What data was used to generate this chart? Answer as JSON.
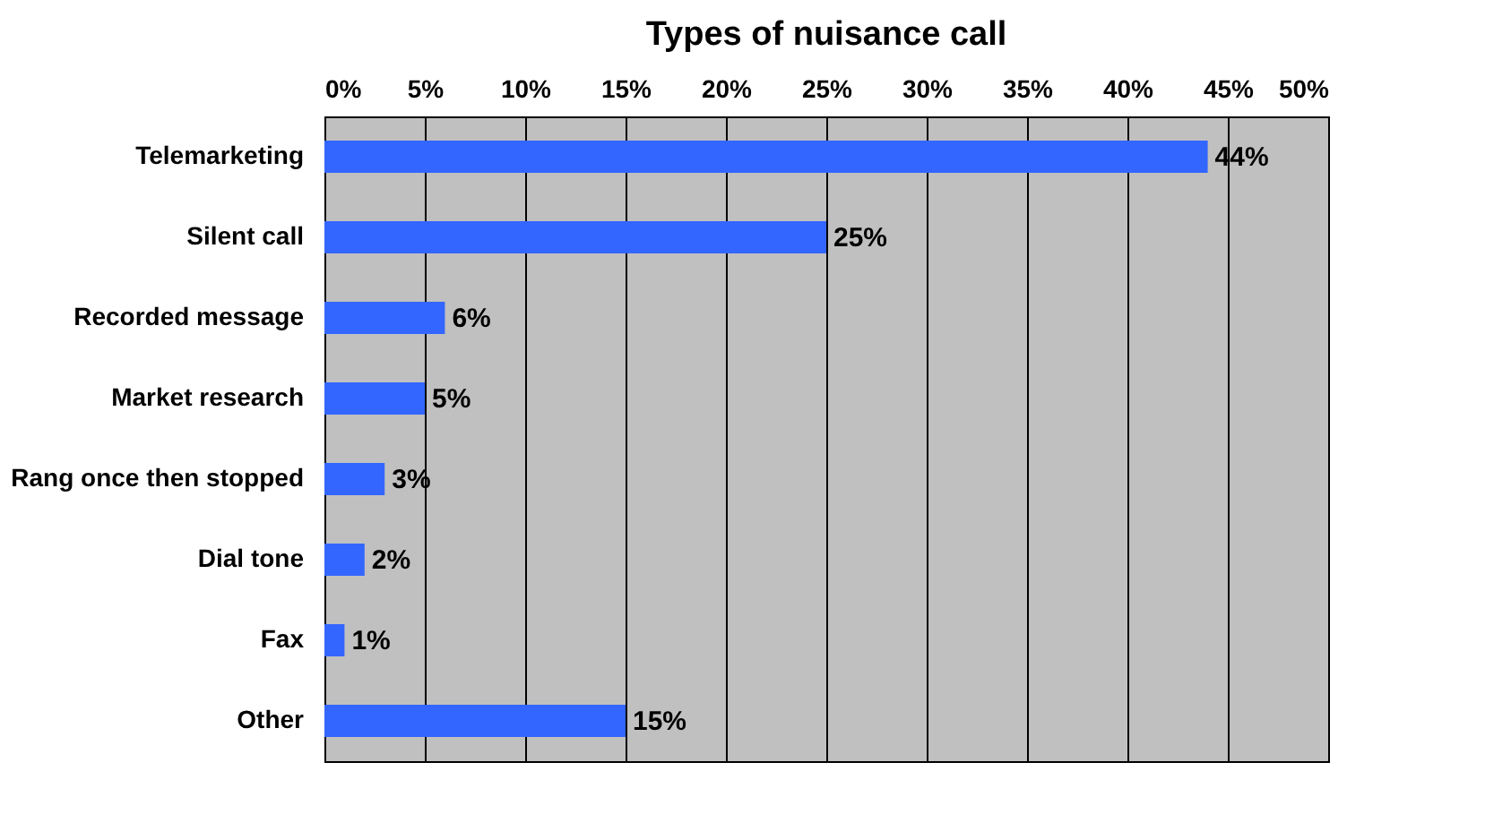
{
  "chart_data": {
    "type": "bar",
    "orientation": "horizontal",
    "title": "Types of nuisance call",
    "categories": [
      "Telemarketing",
      "Silent call",
      "Recorded message",
      "Market research",
      "Rang once then stopped",
      "Dial tone",
      "Fax",
      "Other"
    ],
    "values": [
      44,
      25,
      6,
      5,
      3,
      2,
      1,
      15
    ],
    "value_labels": [
      "44%",
      "25%",
      "6%",
      "5%",
      "3%",
      "2%",
      "1%",
      "15%"
    ],
    "color": "#3366ff",
    "xlim": [
      0,
      50
    ],
    "xticks": [
      {
        "value": 0,
        "label": "0%"
      },
      {
        "value": 5,
        "label": "5%"
      },
      {
        "value": 10,
        "label": "10%"
      },
      {
        "value": 15,
        "label": "15%"
      },
      {
        "value": 20,
        "label": "20%"
      },
      {
        "value": 25,
        "label": "25%"
      },
      {
        "value": 30,
        "label": "30%"
      },
      {
        "value": 35,
        "label": "35%"
      },
      {
        "value": 40,
        "label": "40%"
      },
      {
        "value": 45,
        "label": "45%"
      },
      {
        "value": 50,
        "label": "50%"
      }
    ],
    "grid": "x"
  }
}
